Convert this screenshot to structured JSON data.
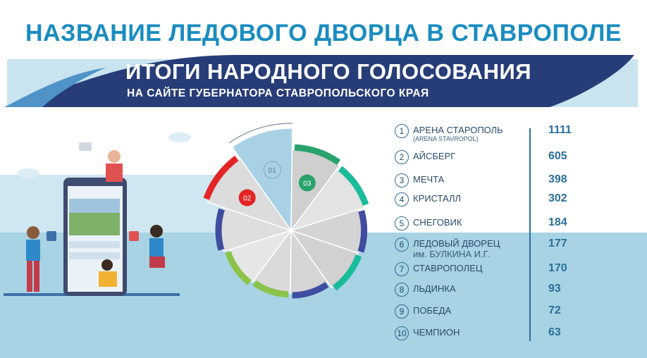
{
  "header": {
    "title": "НАЗВАНИЕ ЛЕДОВОГО ДВОРЦА В СТАВРОПОЛЕ",
    "banner_title": "ИТОГИ НАРОДНОГО ГОЛОСОВАНИЯ",
    "banner_subtitle": "НА САЙТЕ ГУБЕРНАТОРА СТАВРОПОЛЬСКОГО КРАЯ"
  },
  "colors": {
    "title_blue": "#1a8cc0",
    "banner_dark": "#273d78",
    "background_light_blue": "#a7d3e4",
    "value_blue": "#2a6f9a"
  },
  "chart_data": {
    "type": "pie",
    "categories": [
      "АРЕНА СТАРОПОЛЬ",
      "АЙСБЕРГ",
      "МЕЧТА",
      "КРИСТАЛЛ",
      "СНЕГОВИК",
      "ЛЕДОВЫЙ ДВОРЕЦ им. БУЛКИНА И.Г.",
      "СТАВРОПОЛЕЦ",
      "ЛЬДИНКА",
      "ПОБЕДА",
      "ЧЕМПИОН"
    ],
    "values": [
      1111,
      605,
      398,
      302,
      184,
      177,
      170,
      93,
      72,
      63
    ],
    "highlighted_labels": [
      {
        "text": "01",
        "category": "АРЕНА СТАРОПОЛЬ"
      },
      {
        "text": "02",
        "category": "АЙСБЕРГ"
      },
      {
        "text": "03",
        "category": "МЕЧТА"
      }
    ],
    "legend": [
      {
        "num": "1",
        "name": "АРЕНА СТАРОПОЛЬ",
        "name_sub": "(ARENA STAVROPOL)",
        "value": "1111"
      },
      {
        "num": "2",
        "name": "АЙСБЕРГ",
        "name_sub": "",
        "value": "605"
      },
      {
        "num": "3",
        "name": "МЕЧТА",
        "name_sub": "",
        "value": "398"
      },
      {
        "num": "4",
        "name": "КРИСТАЛЛ",
        "name_sub": "",
        "value": "302"
      },
      {
        "num": "5",
        "name": "СНЕГОВИК",
        "name_sub": "",
        "value": "184"
      },
      {
        "num": "6",
        "name": "ЛЕДОВЫЙ ДВОРЕЦ",
        "name_sub": "им. БУЛКИНА И.Г.",
        "value": "177"
      },
      {
        "num": "7",
        "name": "СТАВРОПОЛЕЦ",
        "name_sub": "",
        "value": "170"
      },
      {
        "num": "8",
        "name": "ЛЬДИНКА",
        "name_sub": "",
        "value": "93"
      },
      {
        "num": "9",
        "name": "ПОБЕДА",
        "name_sub": "",
        "value": "72"
      },
      {
        "num": "10",
        "name": "ЧЕМПИОН",
        "name_sub": "",
        "value": "63"
      }
    ]
  }
}
